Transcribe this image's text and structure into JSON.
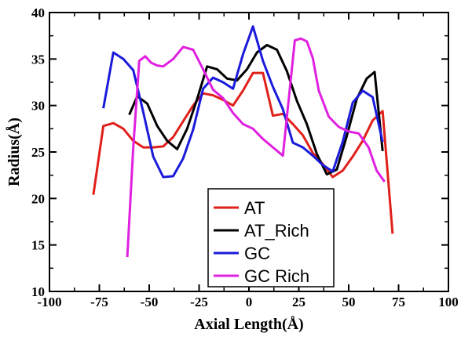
{
  "chart_data": {
    "type": "line",
    "xlabel": "Axial Length(Å)",
    "ylabel": "Radius(Å)",
    "xlim": [
      -100,
      100
    ],
    "ylim": [
      10,
      40
    ],
    "xticks": [
      "-100",
      "-75",
      "-50",
      "-25",
      "0",
      "25",
      "50",
      "75",
      "100"
    ],
    "yticks": [
      "10",
      "15",
      "20",
      "25",
      "30",
      "35",
      "40"
    ],
    "grid": false,
    "legend_position": "bottom-center",
    "series": [
      {
        "name": "AT",
        "color": "#e0201b",
        "x": [
          -78,
          -73,
          -68,
          -63,
          -58,
          -53,
          -48,
          -43,
          -38,
          -33,
          -28,
          -23,
          -18,
          -13,
          -8,
          -3,
          2,
          7,
          12,
          17,
          22,
          27,
          32,
          37,
          42,
          47,
          52,
          57,
          62,
          67,
          72
        ],
        "y": [
          20.4,
          27.8,
          28.1,
          27.5,
          26.2,
          25.5,
          25.5,
          25.6,
          26.6,
          28.3,
          30.0,
          31.3,
          31.1,
          30.6,
          30.0,
          31.6,
          33.5,
          33.5,
          28.9,
          29.1,
          28.0,
          26.8,
          24.9,
          23.7,
          22.3,
          23.0,
          24.5,
          26.2,
          28.4,
          29.4,
          16.2
        ]
      },
      {
        "name": "AT_Rich",
        "color": "#000000",
        "x": [
          -60,
          -56,
          -51,
          -46,
          -41,
          -36,
          -31,
          -26,
          -21,
          -16,
          -11,
          -6,
          -1,
          4,
          9,
          14,
          19,
          24,
          29,
          34,
          39,
          44,
          49,
          54,
          59,
          63,
          67
        ],
        "y": [
          29.0,
          31.0,
          30.2,
          27.8,
          26.2,
          25.3,
          27.5,
          30.7,
          34.2,
          33.9,
          32.9,
          32.7,
          33.9,
          35.7,
          36.5,
          36.0,
          33.7,
          30.5,
          28.0,
          24.8,
          22.6,
          23.1,
          26.7,
          30.7,
          32.9,
          33.6,
          25.1
        ]
      },
      {
        "name": "GC",
        "color": "#1a1adb",
        "x": [
          -73,
          -68,
          -63,
          -58,
          -53,
          -48,
          -43,
          -38,
          -33,
          -28,
          -23,
          -18,
          -13,
          -8,
          -3,
          2,
          7,
          12,
          17,
          22,
          27,
          32,
          37,
          42,
          47,
          52,
          57,
          62,
          67
        ],
        "y": [
          29.7,
          35.7,
          35.0,
          33.8,
          29.3,
          24.5,
          22.3,
          22.4,
          24.3,
          27.4,
          31.8,
          33.0,
          32.5,
          31.8,
          35.5,
          38.5,
          34.8,
          32.0,
          29.6,
          26.0,
          25.5,
          24.6,
          23.6,
          22.9,
          26.1,
          30.3,
          31.6,
          30.9,
          26.1
        ]
      },
      {
        "name": "GC Rich",
        "color": "#e020e0",
        "x": [
          -61,
          -58,
          -55,
          -52,
          -49,
          -46,
          -43,
          -38,
          -33,
          -28,
          -23,
          -18,
          -13,
          -8,
          -3,
          2,
          7,
          12,
          17,
          20,
          23,
          26,
          29,
          32,
          35,
          40,
          45,
          50,
          55,
          60,
          64,
          68
        ],
        "y": [
          13.7,
          25.5,
          34.8,
          35.3,
          34.6,
          34.3,
          34.2,
          35.0,
          36.3,
          36.0,
          33.9,
          31.7,
          30.8,
          29.2,
          28.0,
          27.5,
          26.4,
          25.5,
          24.6,
          30.8,
          37.0,
          37.2,
          36.9,
          35.1,
          31.6,
          28.8,
          27.7,
          27.2,
          27.0,
          25.5,
          23.0,
          21.8
        ]
      }
    ]
  },
  "colors": {
    "background": "#ffffff",
    "axis": "#000000"
  }
}
